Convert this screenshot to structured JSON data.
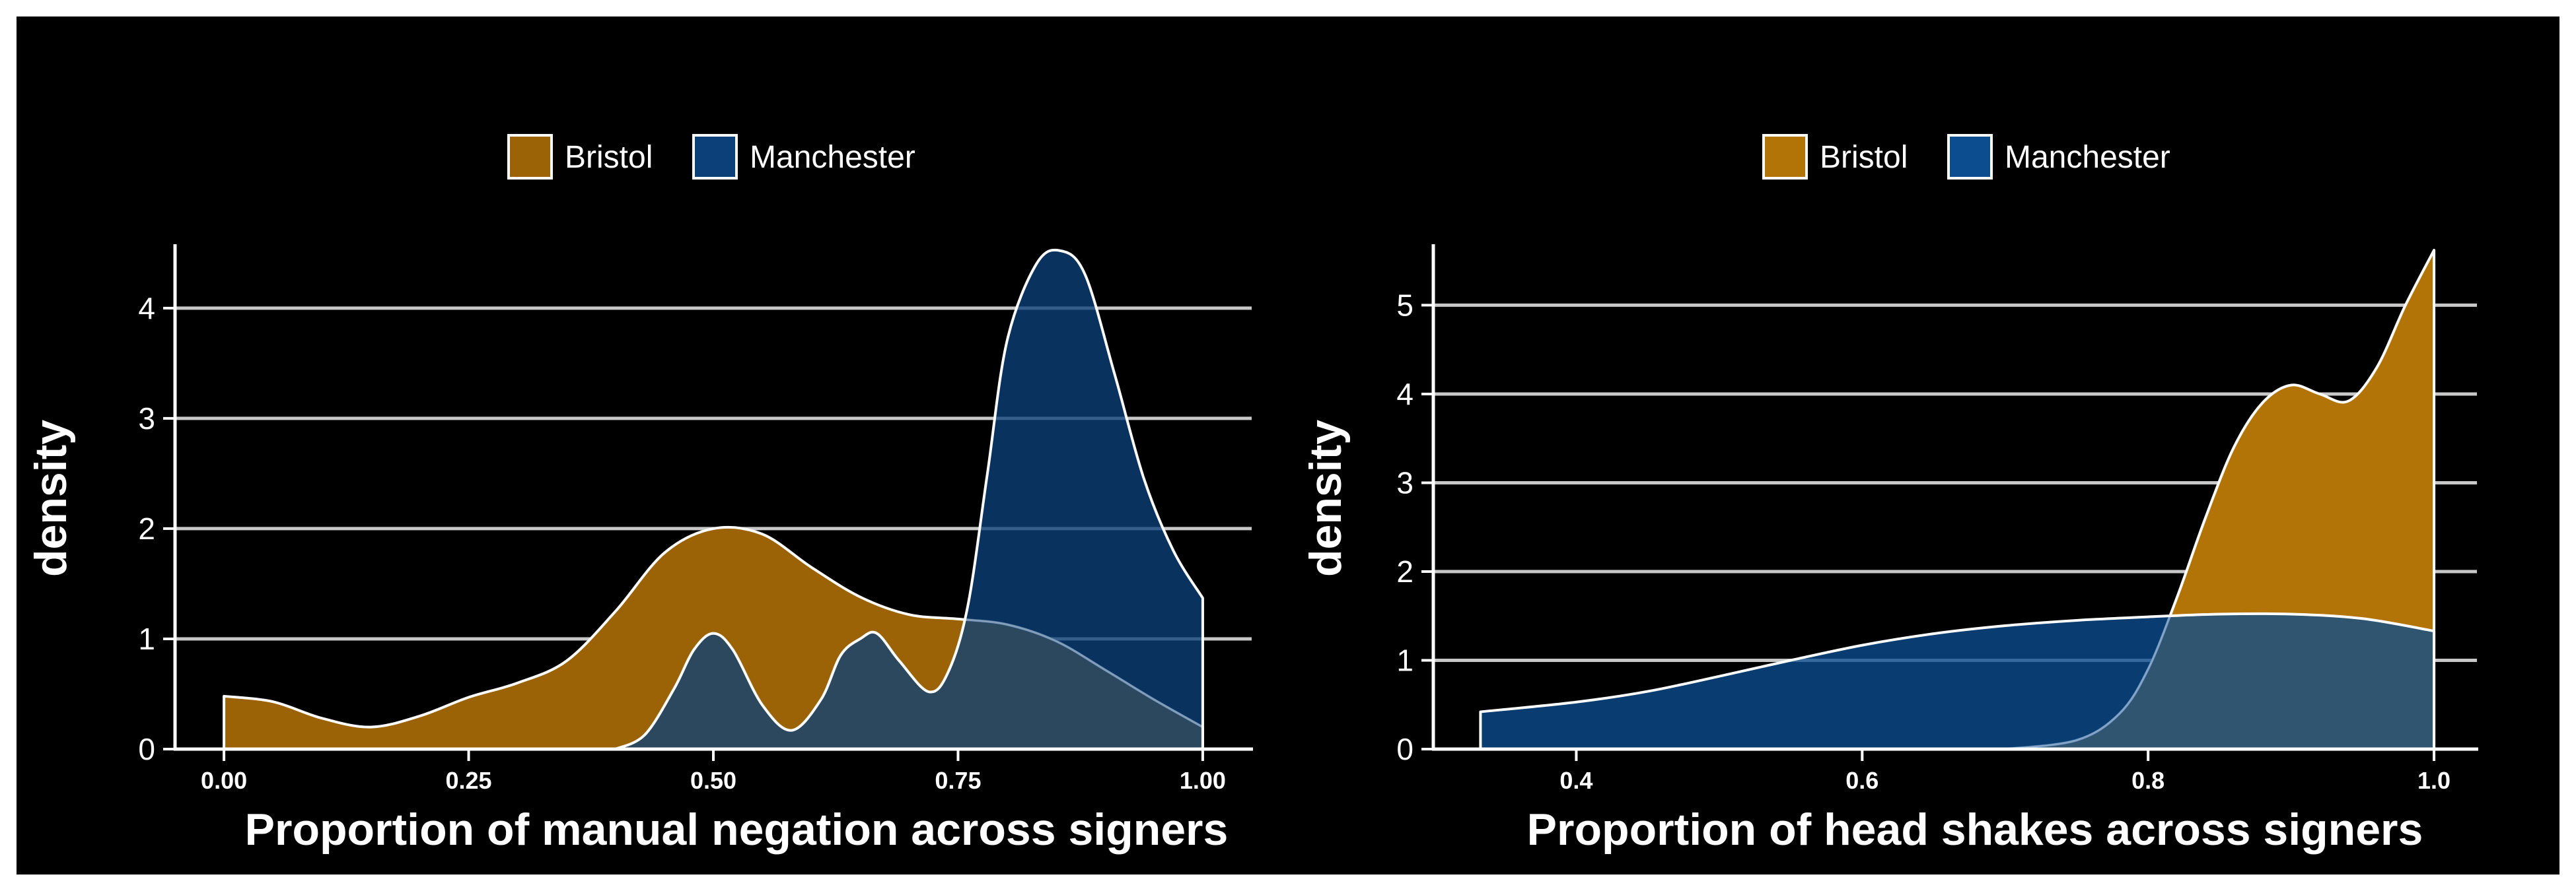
{
  "chart_data": [
    {
      "type": "area",
      "subtype": "density",
      "xlabel": "Proportion of manual negation across signers",
      "ylabel": "density",
      "xlim": [
        -0.05,
        1.05
      ],
      "ylim": [
        0,
        4.55
      ],
      "xticks": [
        0,
        0.25,
        0.5,
        0.75,
        1
      ],
      "xtick_labels": [
        "0.00",
        "0.25",
        "0.50",
        "0.75",
        "1.00"
      ],
      "yticks": [
        0,
        1,
        2,
        3,
        4
      ],
      "ytick_labels": [
        "0",
        "1",
        "2",
        "3",
        "4"
      ],
      "grid": "horizontal major",
      "legend_position": "top",
      "series": [
        {
          "name": "Bristol",
          "color": "#9b6305",
          "x": [
            0,
            0.05,
            0.1,
            0.15,
            0.2,
            0.25,
            0.3,
            0.35,
            0.4,
            0.45,
            0.5,
            0.55,
            0.6,
            0.65,
            0.7,
            0.75,
            0.8,
            0.85,
            0.9,
            0.95,
            1.0
          ],
          "y": [
            0.48,
            0.43,
            0.28,
            0.2,
            0.3,
            0.47,
            0.6,
            0.8,
            1.25,
            1.78,
            2.0,
            1.95,
            1.65,
            1.38,
            1.22,
            1.18,
            1.13,
            0.98,
            0.72,
            0.45,
            0.2
          ]
        },
        {
          "name": "Manchester",
          "color": "#0b4079",
          "x": [
            0.4,
            0.43,
            0.46,
            0.48,
            0.5,
            0.52,
            0.55,
            0.58,
            0.61,
            0.63,
            0.65,
            0.667,
            0.69,
            0.72,
            0.74,
            0.76,
            0.78,
            0.8,
            0.83,
            0.855,
            0.88,
            0.91,
            0.94,
            0.97,
            1.0
          ],
          "y": [
            0.0,
            0.13,
            0.55,
            0.9,
            1.05,
            0.9,
            0.4,
            0.17,
            0.45,
            0.85,
            1.0,
            1.05,
            0.8,
            0.52,
            0.7,
            1.3,
            2.5,
            3.7,
            4.4,
            4.52,
            4.3,
            3.4,
            2.45,
            1.8,
            1.37
          ]
        }
      ]
    },
    {
      "type": "area",
      "subtype": "density",
      "xlabel": "Proportion of head shakes across signers",
      "ylabel": "density",
      "xlim": [
        0.3,
        1.03
      ],
      "ylim": [
        0,
        5.65
      ],
      "xticks": [
        0.4,
        0.6,
        0.8,
        1.0
      ],
      "xtick_labels": [
        "0.4",
        "0.6",
        "0.8",
        "1.0"
      ],
      "yticks": [
        0,
        1,
        2,
        3,
        4,
        5
      ],
      "ytick_labels": [
        "0",
        "1",
        "2",
        "3",
        "4",
        "5"
      ],
      "grid": "horizontal major",
      "legend_position": "top",
      "series": [
        {
          "name": "Bristol",
          "color": "#b37407",
          "x": [
            0.7,
            0.75,
            0.78,
            0.8,
            0.82,
            0.84,
            0.86,
            0.88,
            0.9,
            0.92,
            0.94,
            0.96,
            0.98,
            1.0
          ],
          "y": [
            0.0,
            0.1,
            0.4,
            0.9,
            1.7,
            2.6,
            3.4,
            3.9,
            4.1,
            4.0,
            3.92,
            4.3,
            5.0,
            5.62
          ]
        },
        {
          "name": "Manchester",
          "color": "#0b4d8f",
          "x": [
            0.333,
            0.4,
            0.45,
            0.5,
            0.55,
            0.6,
            0.65,
            0.7,
            0.75,
            0.8,
            0.85,
            0.9,
            0.95,
            1.0
          ],
          "y": [
            0.42,
            0.53,
            0.65,
            0.82,
            1.0,
            1.17,
            1.3,
            1.39,
            1.45,
            1.49,
            1.52,
            1.52,
            1.47,
            1.33
          ]
        }
      ]
    }
  ]
}
